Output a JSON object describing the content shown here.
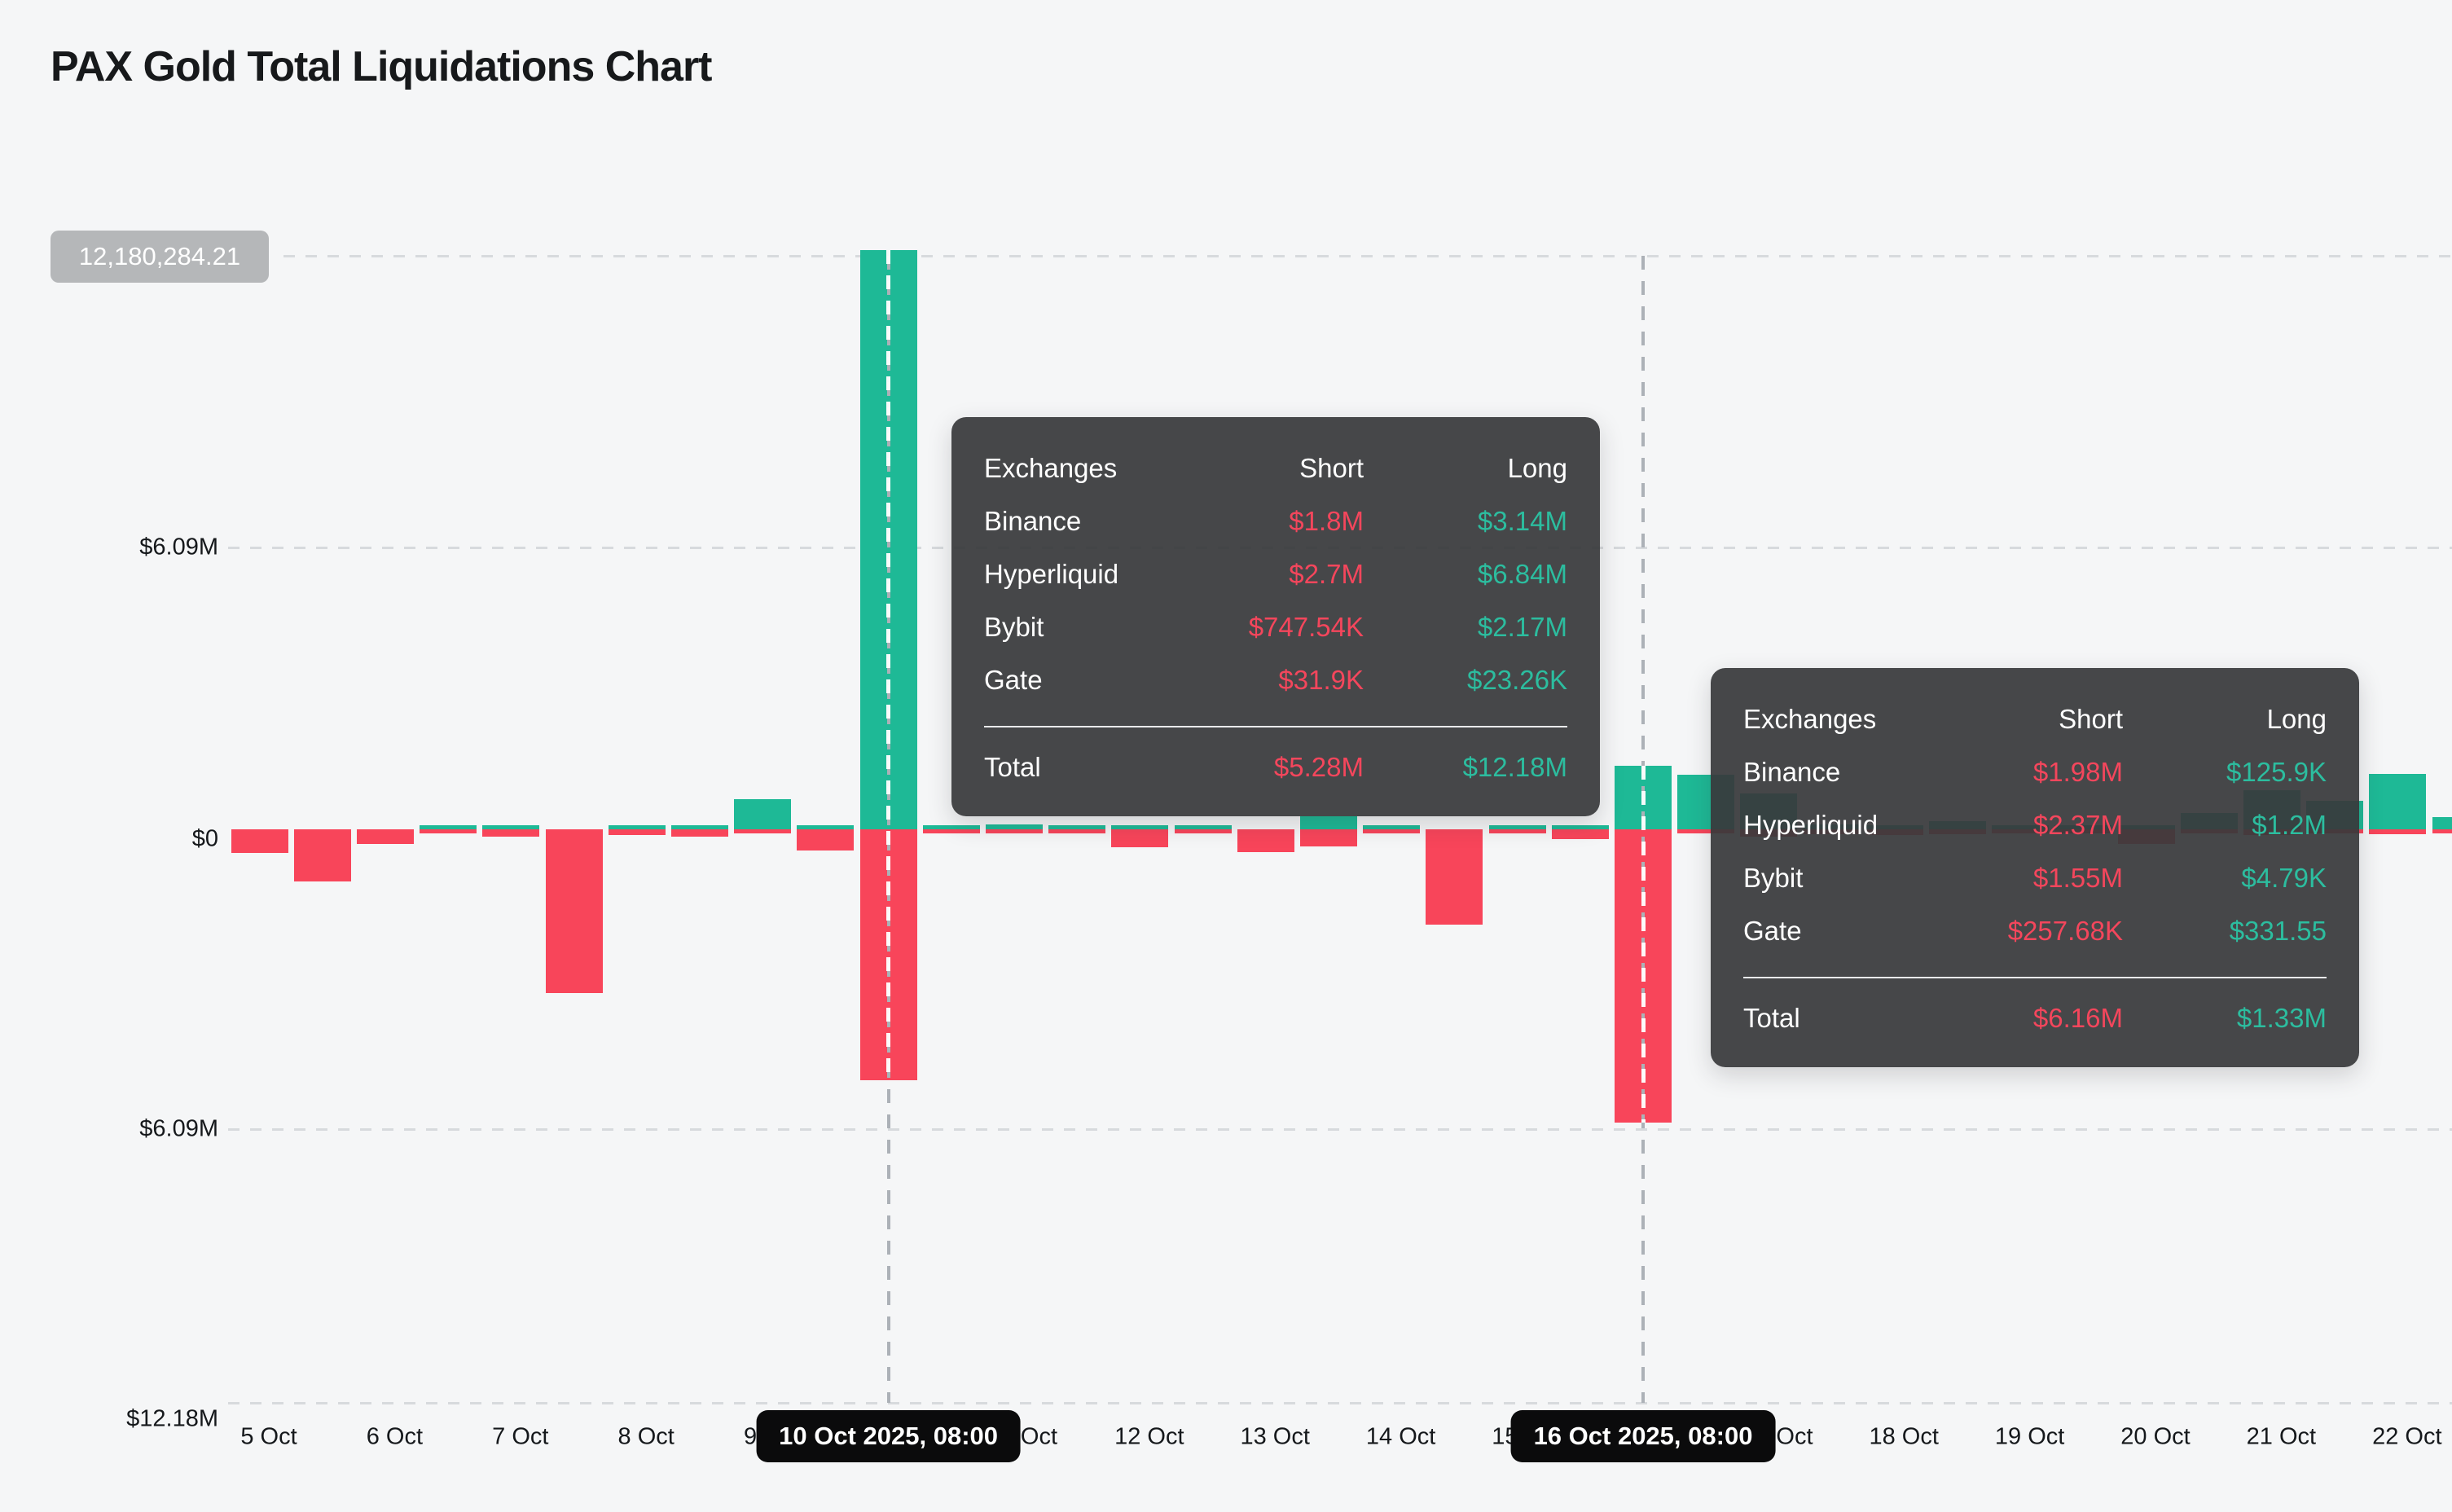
{
  "page": {
    "title": "PAX Gold Total Liquidations Chart"
  },
  "colors": {
    "background": "#F5F6F7",
    "long_green": "#1EB996",
    "short_red": "#F8455A",
    "grid": "#D7DADD",
    "crosshair": "#ACB1B7",
    "axis_text": "#15181B",
    "max_box_bg": "#B5B7B9",
    "x_pill_bg": "#0B0B0C",
    "tooltip_bg": "rgba(56,57,59,0.93)",
    "tooltip_short_red": "#F4465C",
    "tooltip_long_green": "#2CBD9F"
  },
  "y_axis": {
    "max_value_box": "12,180,284.21",
    "labels": [
      "$6.09M",
      "$0",
      "$6.09M",
      "$12.18M"
    ]
  },
  "x_axis": {
    "day_labels": [
      "5 Oct",
      "6 Oct",
      "7 Oct",
      "8 Oct",
      "9 Oct",
      "10 Oct",
      "11 Oct",
      "12 Oct",
      "13 Oct",
      "14 Oct",
      "15 Oct",
      "16 Oct",
      "17 Oct",
      "18 Oct",
      "19 Oct",
      "20 Oct",
      "21 Oct",
      "22 Oct"
    ]
  },
  "tooltips": [
    {
      "columns": [
        "Exchanges",
        "Short",
        "Long"
      ],
      "rows": [
        {
          "name": "Binance",
          "short": "$1.8M",
          "long": "$3.14M"
        },
        {
          "name": "Hyperliquid",
          "short": "$2.7M",
          "long": "$6.84M"
        },
        {
          "name": "Bybit",
          "short": "$747.54K",
          "long": "$2.17M"
        },
        {
          "name": "Gate",
          "short": "$31.9K",
          "long": "$23.26K"
        }
      ],
      "total": {
        "name": "Total",
        "short": "$5.28M",
        "long": "$12.18M"
      }
    },
    {
      "columns": [
        "Exchanges",
        "Short",
        "Long"
      ],
      "rows": [
        {
          "name": "Binance",
          "short": "$1.98M",
          "long": "$125.9K"
        },
        {
          "name": "Hyperliquid",
          "short": "$2.37M",
          "long": "$1.2M"
        },
        {
          "name": "Bybit",
          "short": "$1.55M",
          "long": "$4.79K"
        },
        {
          "name": "Gate",
          "short": "$257.68K",
          "long": "$331.55"
        }
      ],
      "total": {
        "name": "Total",
        "short": "$6.16M",
        "long": "$1.33M"
      }
    }
  ],
  "chart_data": {
    "type": "bar",
    "title": "PAX Gold Total Liquidations Chart",
    "unit": "USD millions",
    "interval": "12h",
    "grid": "dashed horizontal",
    "legend_position": "none",
    "ylim": [
      -12.18,
      12.18
    ],
    "y_gridline_values_M": [
      12.18,
      6.09,
      0,
      -6.09,
      -12.18
    ],
    "y_max_exact": "12,180,284.21",
    "categories": [
      "5 Oct 08:00",
      "5 Oct 20:00",
      "6 Oct 08:00",
      "6 Oct 20:00",
      "7 Oct 08:00",
      "7 Oct 20:00",
      "8 Oct 08:00",
      "8 Oct 20:00",
      "9 Oct 08:00",
      "9 Oct 20:00",
      "10 Oct 08:00",
      "10 Oct 20:00",
      "11 Oct 08:00",
      "11 Oct 20:00",
      "12 Oct 08:00",
      "12 Oct 20:00",
      "13 Oct 08:00",
      "13 Oct 20:00",
      "14 Oct 08:00",
      "14 Oct 20:00",
      "15 Oct 08:00",
      "15 Oct 20:00",
      "16 Oct 08:00",
      "16 Oct 20:00",
      "17 Oct 08:00",
      "17 Oct 20:00",
      "18 Oct 08:00",
      "18 Oct 20:00",
      "19 Oct 08:00",
      "19 Oct 20:00",
      "20 Oct 08:00",
      "20 Oct 20:00",
      "21 Oct 08:00",
      "21 Oct 20:00",
      "22 Oct 08:00",
      "22 Oct 20:00"
    ],
    "series": [
      {
        "name": "Long liquidations (plotted upward)",
        "color": "#1EB996",
        "values": [
          0,
          0,
          0,
          0.06,
          0.05,
          0,
          0.08,
          0.08,
          0.63,
          0.05,
          12.18,
          0.08,
          0.1,
          0.02,
          0.04,
          0.02,
          0,
          0.27,
          0.05,
          0,
          0.08,
          0.06,
          1.33,
          1.15,
          0.75,
          0.1,
          0.05,
          0.17,
          0.06,
          0.03,
          0.05,
          0.35,
          0.82,
          0.6,
          1.16,
          0.25
        ]
      },
      {
        "name": "Short liquidations (plotted downward)",
        "color": "#F8455A",
        "values": [
          0.5,
          1.1,
          0.3,
          0.08,
          0.15,
          3.45,
          0.12,
          0.15,
          0.05,
          0.45,
          5.28,
          0.03,
          0.03,
          0.05,
          0.38,
          0.07,
          0.48,
          0.36,
          0.08,
          2.0,
          0.08,
          0.2,
          6.16,
          0.06,
          0.15,
          0.1,
          0.12,
          0.1,
          0.05,
          0.03,
          0.3,
          0.05,
          0.12,
          0.08,
          0.1,
          0.05
        ]
      }
    ],
    "highlighted_bars": [
      {
        "index": 10,
        "pill_label": "10 Oct 2025, 08:00",
        "tooltip": 0
      },
      {
        "index": 22,
        "pill_label": "16 Oct 2025, 08:00",
        "tooltip": 1
      }
    ]
  }
}
